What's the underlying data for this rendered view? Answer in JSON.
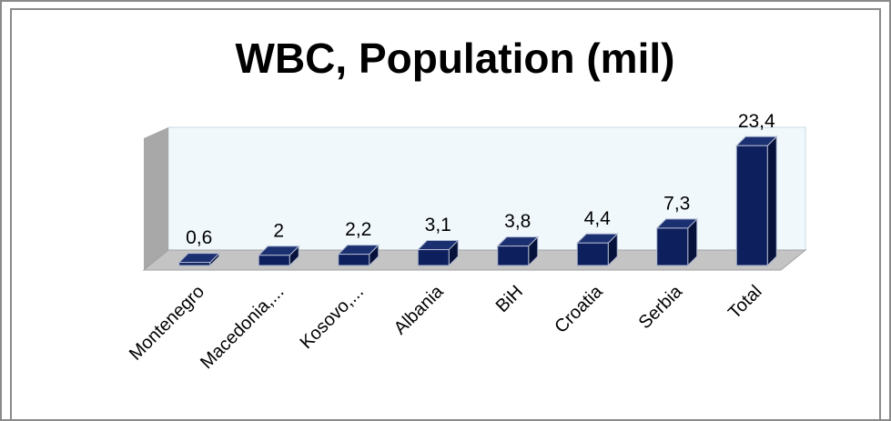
{
  "chart_data": {
    "type": "bar",
    "title": "WBC, Population (mil)",
    "categories": [
      "Montenegro",
      "Macedonia,...",
      "Kosovo,...",
      "Albania",
      "BiH",
      "Croatia",
      "Serbia",
      "Total"
    ],
    "values": [
      0.6,
      2,
      2.2,
      3.1,
      3.8,
      4.4,
      7.3,
      23.4
    ],
    "value_labels": [
      "0,6",
      "2",
      "2,2",
      "3,1",
      "3,8",
      "4,4",
      "7,3",
      "23,4"
    ],
    "color": "#0d1f5c",
    "ylim": [
      0,
      27
    ]
  }
}
